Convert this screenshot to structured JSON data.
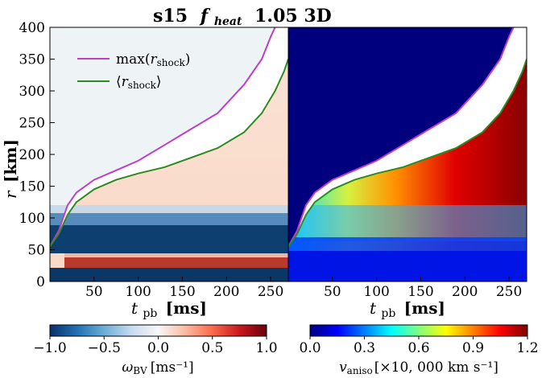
{
  "chart_data": [
    {
      "type": "heatmap",
      "panel": "left",
      "title": "s15 f_heat 1.05 3D",
      "title_parts": {
        "model": "s15",
        "symbol": "f",
        "symbol_sub": "heat",
        "value": "1.05 3D"
      },
      "xlabel": {
        "symbol": "t",
        "sub": "pb",
        "unit": "[ms]"
      },
      "ylabel": {
        "symbol": "r",
        "unit": "[km]"
      },
      "xlim": [
        0,
        270
      ],
      "ylim": [
        0,
        400
      ],
      "xticks": [
        50,
        100,
        150,
        200,
        250
      ],
      "yticks": [
        0,
        50,
        100,
        150,
        200,
        250,
        300,
        350,
        400
      ],
      "legend": {
        "position": "top-left",
        "entries": [
          {
            "label": "max(r_shock)",
            "text": "max(",
            "symbol": "r",
            "sub": "shock",
            "close": ")",
            "color": "#c03cc8"
          },
          {
            "label": "⟨r_shock⟩",
            "text": "⟨",
            "symbol": "r",
            "sub": "shock",
            "close": "⟩",
            "color": "#2e8b22"
          }
        ]
      },
      "series": [
        {
          "name": "max(r_shock)",
          "color": "#c03cc8",
          "t": [
            0,
            10,
            20,
            30,
            50,
            75,
            100,
            130,
            160,
            190,
            220,
            240,
            250,
            255
          ],
          "r": [
            55,
            80,
            120,
            140,
            160,
            175,
            190,
            215,
            240,
            265,
            310,
            350,
            385,
            400
          ]
        },
        {
          "name": "<r_shock>",
          "color": "#2e8b22",
          "t": [
            0,
            10,
            20,
            30,
            50,
            75,
            100,
            130,
            160,
            190,
            220,
            240,
            255,
            265,
            270
          ],
          "r": [
            55,
            75,
            105,
            125,
            145,
            160,
            170,
            180,
            195,
            210,
            235,
            265,
            300,
            330,
            350
          ]
        }
      ],
      "colorbar": {
        "min": -1.0,
        "max": 1.0,
        "ticks": [
          "−1.0",
          "−0.5",
          "0.0",
          "0.5",
          "1.0"
        ],
        "label_symbol": "ω",
        "label_sub": "BV",
        "label_unit": "[ms⁻¹]",
        "colormap": [
          "#08306b",
          "#2171b5",
          "#6baed6",
          "#c6dbef",
          "#f7f7f7",
          "#fcbba1",
          "#fb6a4a",
          "#cb181d",
          "#67000d"
        ]
      }
    },
    {
      "type": "heatmap",
      "panel": "right",
      "xlabel": {
        "symbol": "t",
        "sub": "pb",
        "unit": "[ms]"
      },
      "xlim": [
        0,
        270
      ],
      "ylim": [
        0,
        400
      ],
      "xticks": [
        50,
        100,
        150,
        200,
        250
      ],
      "series": [
        {
          "name": "max(r_shock)",
          "color": "#c03cc8",
          "t": [
            0,
            10,
            20,
            30,
            50,
            75,
            100,
            130,
            160,
            190,
            220,
            240,
            250,
            255
          ],
          "r": [
            55,
            80,
            120,
            140,
            160,
            175,
            190,
            215,
            240,
            265,
            310,
            350,
            385,
            400
          ]
        },
        {
          "name": "<r_shock>",
          "color": "#2e8b22",
          "t": [
            0,
            10,
            20,
            30,
            50,
            75,
            100,
            130,
            160,
            190,
            220,
            240,
            255,
            265,
            270
          ],
          "r": [
            55,
            75,
            105,
            125,
            145,
            160,
            170,
            180,
            195,
            210,
            235,
            265,
            300,
            330,
            350
          ]
        }
      ],
      "colorbar": {
        "min": 0.0,
        "max": 1.2,
        "ticks": [
          "0.0",
          "0.3",
          "0.6",
          "0.9",
          "1.2"
        ],
        "label_symbol": "v",
        "label_sub": "aniso",
        "label_unit": "[×10, 000 km s⁻¹]",
        "colormap": [
          "#00007f",
          "#0000ff",
          "#007fff",
          "#00ffff",
          "#7fff7f",
          "#ffff00",
          "#ff7f00",
          "#ff0000",
          "#7f0000"
        ]
      }
    }
  ]
}
